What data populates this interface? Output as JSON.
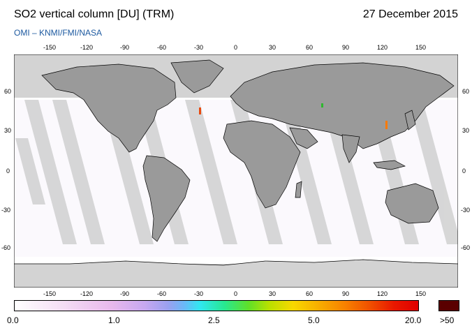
{
  "header": {
    "title": "SO2 vertical column [DU] (TRM)",
    "date": "27 December 2015",
    "source": "OMI  –  KNMI/FMI/NASA"
  },
  "axes": {
    "lon_ticks": [
      "-150",
      "-120",
      "-90",
      "-60",
      "-30",
      "0",
      "30",
      "60",
      "90",
      "120",
      "150"
    ],
    "lat_ticks": [
      "60",
      "30",
      "0",
      "-30",
      "-60"
    ]
  },
  "colorbar": {
    "labels": [
      "0.0",
      "1.0",
      "2.5",
      "5.0",
      "20.0"
    ],
    "overflow_label": ">50",
    "overflow_color": "#5a0000"
  },
  "colors": {
    "ocean": "#ffffff",
    "land": "#9a9a9a",
    "gap_stripes": "#d3d3d3",
    "polar_night": "#d3d3d3",
    "coastline": "#000000"
  }
}
